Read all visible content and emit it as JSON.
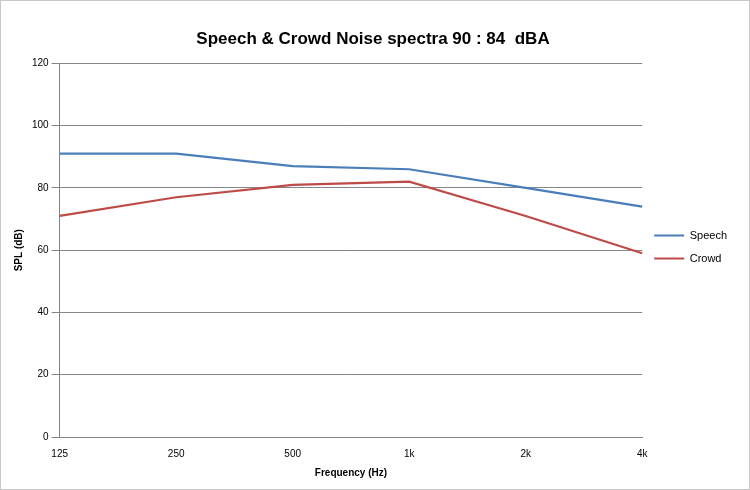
{
  "chart_data": {
    "type": "line",
    "title": "Speech & Crowd Noise spectra 90 : 84  dBA",
    "x_label": "Frequency (Hz)",
    "y_label": "SPL (dB)",
    "categories": [
      "125",
      "250",
      "500",
      "1k",
      "2k",
      "4k"
    ],
    "series": [
      {
        "name": "Speech",
        "color": "#4a7ebb",
        "values": [
          91,
          91,
          87,
          86,
          80,
          74
        ]
      },
      {
        "name": "Crowd",
        "color": "#be4b48",
        "values": [
          71,
          77,
          81,
          82,
          71,
          59
        ]
      }
    ],
    "ylim": [
      0,
      120
    ],
    "yticks": [
      0,
      20,
      40,
      60,
      80,
      100,
      120
    ],
    "grid": true,
    "legend": "right"
  }
}
